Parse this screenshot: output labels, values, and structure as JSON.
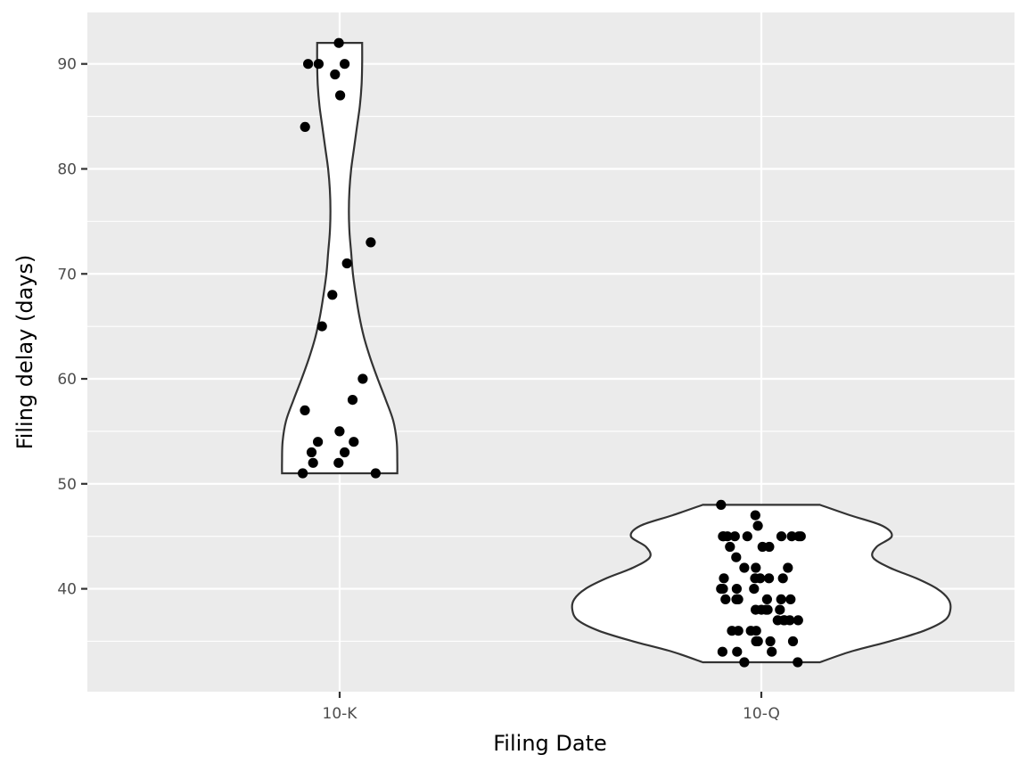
{
  "chart_data": {
    "type": "violin",
    "xlabel": "Filing Date",
    "ylabel": "Filing delay (days)",
    "categories": [
      "10-K",
      "10-Q"
    ],
    "ylim": [
      30.2,
      94.9
    ],
    "yticks": [
      40,
      50,
      60,
      70,
      80,
      90
    ],
    "grid": true,
    "groups": [
      {
        "name": "10-K",
        "values": [
          92,
          90,
          90,
          90,
          89,
          87,
          84,
          73,
          71,
          68,
          65,
          60,
          58,
          57,
          55,
          54,
          54,
          53,
          53,
          52,
          52,
          51,
          51
        ],
        "density": [
          [
            51,
            1.0
          ],
          [
            52,
            1.0
          ],
          [
            54,
            0.99
          ],
          [
            56,
            0.93
          ],
          [
            58,
            0.8
          ],
          [
            60,
            0.66
          ],
          [
            62,
            0.53
          ],
          [
            64,
            0.42
          ],
          [
            66,
            0.34
          ],
          [
            68,
            0.28
          ],
          [
            70,
            0.23
          ],
          [
            72,
            0.2
          ],
          [
            74,
            0.17
          ],
          [
            76,
            0.16
          ],
          [
            78,
            0.17
          ],
          [
            80,
            0.2
          ],
          [
            82,
            0.25
          ],
          [
            84,
            0.3
          ],
          [
            86,
            0.35
          ],
          [
            88,
            0.38
          ],
          [
            90,
            0.39
          ],
          [
            92,
            0.39
          ]
        ]
      },
      {
        "name": "10-Q",
        "values": [
          48,
          47,
          46,
          45,
          45,
          45,
          45,
          45,
          45,
          45,
          45,
          45,
          44,
          44,
          44,
          43,
          42,
          42,
          42,
          41,
          41,
          41,
          41,
          41,
          40,
          40,
          40,
          40,
          39,
          39,
          39,
          39,
          39,
          39,
          39,
          38,
          38,
          38,
          38,
          38,
          37,
          37,
          37,
          37,
          37,
          36,
          36,
          36,
          36,
          35,
          35,
          35,
          35,
          34,
          34,
          34,
          33,
          33
        ],
        "density": [
          [
            33,
            0.31
          ],
          [
            34,
            0.47
          ],
          [
            35,
            0.68
          ],
          [
            36,
            0.86
          ],
          [
            37,
            0.97
          ],
          [
            38,
            1.0
          ],
          [
            39,
            0.99
          ],
          [
            40,
            0.93
          ],
          [
            41,
            0.82
          ],
          [
            42,
            0.68
          ],
          [
            43,
            0.59
          ],
          [
            44,
            0.61
          ],
          [
            45,
            0.69
          ],
          [
            46,
            0.64
          ],
          [
            47,
            0.47
          ],
          [
            48,
            0.31
          ]
        ]
      }
    ]
  }
}
